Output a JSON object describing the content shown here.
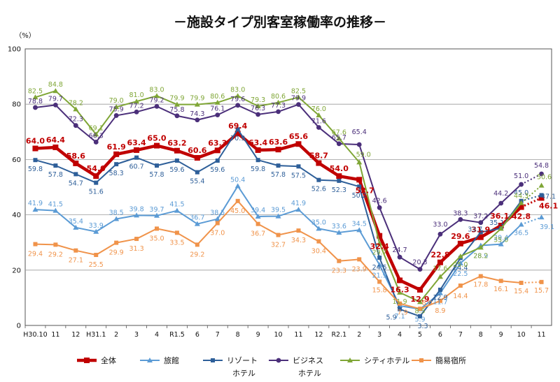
{
  "chart_data": {
    "type": "line",
    "title": "－施設タイプ別客室稼働率の推移－",
    "unit": "（%）",
    "ylim": [
      0,
      100
    ],
    "yticks": [
      "0",
      "20",
      "40",
      "60",
      "80",
      "100"
    ],
    "grid": true,
    "legend_position": "bottom",
    "categories": [
      "H30.10",
      "11",
      "12",
      "H31.1",
      "2",
      "3",
      "4",
      "R1.5",
      "6",
      "7",
      "8",
      "9",
      "10",
      "11",
      "12",
      "R2.1",
      "2",
      "3",
      "4",
      "5",
      "6",
      "7",
      "8",
      "9",
      "10",
      "11"
    ],
    "series": [
      {
        "name": "全体",
        "color": "#c00000",
        "marker": "square",
        "bold": true,
        "values": [
          64.0,
          64.4,
          58.6,
          54.0,
          61.9,
          63.4,
          65.0,
          63.2,
          60.6,
          63.3,
          69.4,
          63.4,
          63.6,
          65.6,
          58.7,
          54.0,
          52.7,
          32.4,
          16.3,
          12.9,
          22.8,
          29.6,
          31.9,
          36.1,
          42.8,
          46.1
        ]
      },
      {
        "name": "旅館",
        "color": "#5b9bd5",
        "marker": "triangle",
        "values": [
          41.9,
          41.5,
          35.4,
          33.9,
          38.5,
          39.8,
          39.7,
          41.5,
          36.7,
          38.5,
          50.4,
          39.4,
          39.5,
          41.9,
          35.0,
          33.6,
          34.5,
          21.9,
          7.1,
          5.9,
          11.7,
          22.5,
          28.9,
          29.4,
          36.5,
          39.1
        ]
      },
      {
        "name": "リゾート ホテル",
        "color": "#2e5f99",
        "marker": "square",
        "values": [
          59.8,
          57.8,
          54.7,
          51.6,
          58.3,
          60.7,
          57.8,
          59.6,
          55.4,
          59.6,
          70.9,
          59.8,
          57.8,
          57.5,
          52.6,
          52.3,
          50.2,
          24.5,
          5.9,
          3.3,
          12.9,
          24.4,
          33.7,
          35.1,
          45.0,
          47.1
        ]
      },
      {
        "name": "ビジネス ホテル",
        "color": "#4b2f7a",
        "marker": "circle",
        "values": [
          78.8,
          79.7,
          72.3,
          66.3,
          75.9,
          77.2,
          79.2,
          75.8,
          74.3,
          76.1,
          79.6,
          76.3,
          77.3,
          79.9,
          71.6,
          65.7,
          65.4,
          42.6,
          24.7,
          20.3,
          33.0,
          38.3,
          37.2,
          44.2,
          51.0,
          54.8
        ]
      },
      {
        "name": "シティホテル",
        "color": "#7fa636",
        "marker": "triangle",
        "values": [
          82.5,
          84.8,
          78.2,
          69.1,
          79.0,
          81.0,
          83.0,
          79.9,
          79.9,
          80.6,
          83.0,
          79.3,
          80.6,
          82.5,
          76.0,
          67.6,
          59.0,
          29.7,
          11.9,
          8.5,
          17.6,
          25.0,
          28.2,
          35.0,
          44.3,
          50.6
        ]
      },
      {
        "name": "簡易宿所",
        "color": "#f0934a",
        "marker": "square",
        "values": [
          29.4,
          29.2,
          27.1,
          25.5,
          29.9,
          31.3,
          35.0,
          33.5,
          29.2,
          37.0,
          45.0,
          36.7,
          32.7,
          34.3,
          30.4,
          23.3,
          23.9,
          15.8,
          7.9,
          6.0,
          8.9,
          14.4,
          17.8,
          16.1,
          15.4,
          15.7
        ]
      }
    ]
  },
  "legend": [
    {
      "label": "全体",
      "label2": ""
    },
    {
      "label": "旅館",
      "label2": ""
    },
    {
      "label": "リゾート",
      "label2": "ホテル"
    },
    {
      "label": "ビジネス",
      "label2": "ホテル"
    },
    {
      "label": "シティホテル",
      "label2": ""
    },
    {
      "label": "簡易宿所",
      "label2": ""
    }
  ]
}
